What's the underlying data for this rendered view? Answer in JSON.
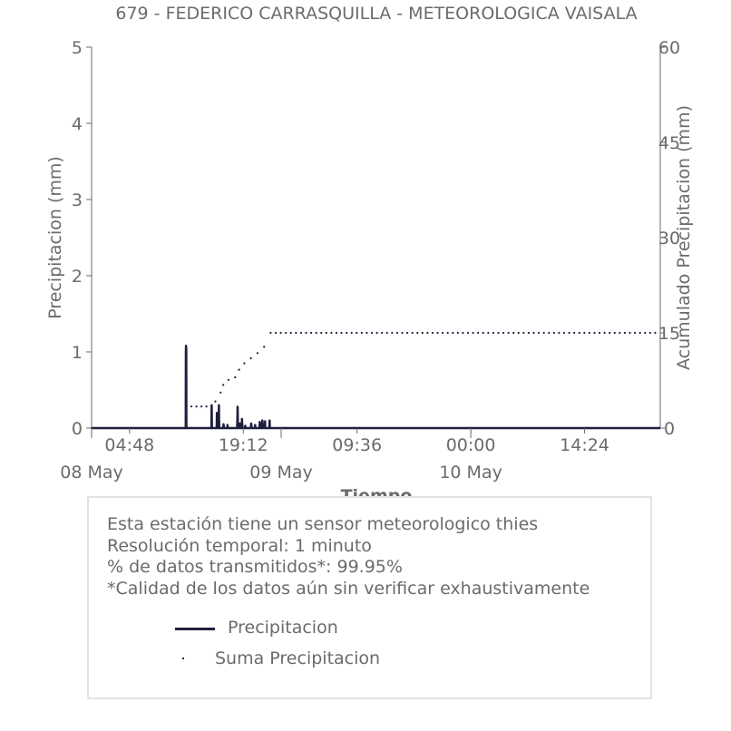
{
  "chart_data": {
    "type": "line",
    "title": "679 - FEDERICO CARRASQUILLA - METEOROLOGICA VAISALA",
    "xlabel": "Tiempo",
    "ylabel": "Precipitacion (mm)",
    "ylabel_right": "Acumulado Precipitacion (mm)",
    "x_start": "2024-05-08 00:00",
    "x_end": "2024-05-10 23:59",
    "ylim": [
      0,
      5
    ],
    "ylim_right": [
      0,
      60
    ],
    "yticks": [
      "0",
      "1",
      "2",
      "3",
      "4",
      "5"
    ],
    "yticks_right": [
      "0",
      "15",
      "30",
      "45",
      "60"
    ],
    "xticks": [
      {
        "t": "2024-05-08 04:48",
        "label": "04:48"
      },
      {
        "t": "2024-05-08 19:12",
        "label": "19:12"
      },
      {
        "t": "2024-05-09 09:36",
        "label": "09:36"
      },
      {
        "t": "2024-05-10 00:00",
        "label": "00:00"
      },
      {
        "t": "2024-05-10 14:24",
        "label": "14:24"
      }
    ],
    "date_ticks": [
      {
        "t": "2024-05-08 00:00",
        "label": "08 May"
      },
      {
        "t": "2024-05-09 00:00",
        "label": "09 May"
      },
      {
        "t": "2024-05-10 00:00",
        "label": "10 May"
      }
    ],
    "series": [
      {
        "name": "Precipitacion",
        "style": "line",
        "color": "#1f1f3d",
        "points": [
          [
            "2024-05-08 00:00",
            0
          ],
          [
            "2024-05-08 11:55",
            0
          ],
          [
            "2024-05-08 11:56",
            0.95
          ],
          [
            "2024-05-08 11:57",
            1.08
          ],
          [
            "2024-05-08 11:58",
            0.5
          ],
          [
            "2024-05-08 11:59",
            1.05
          ],
          [
            "2024-05-08 12:00",
            0
          ],
          [
            "2024-05-08 15:10",
            0
          ],
          [
            "2024-05-08 15:12",
            0.3
          ],
          [
            "2024-05-08 15:14",
            0
          ],
          [
            "2024-05-08 15:50",
            0
          ],
          [
            "2024-05-08 15:52",
            0.2
          ],
          [
            "2024-05-08 15:54",
            0
          ],
          [
            "2024-05-08 16:05",
            0
          ],
          [
            "2024-05-08 16:07",
            0.3
          ],
          [
            "2024-05-08 16:08",
            0.1
          ],
          [
            "2024-05-08 16:10",
            0
          ],
          [
            "2024-05-08 16:40",
            0
          ],
          [
            "2024-05-08 16:42",
            0.05
          ],
          [
            "2024-05-08 16:45",
            0
          ],
          [
            "2024-05-08 17:10",
            0
          ],
          [
            "2024-05-08 17:12",
            0.04
          ],
          [
            "2024-05-08 17:15",
            0
          ],
          [
            "2024-05-08 18:25",
            0
          ],
          [
            "2024-05-08 18:27",
            0.08
          ],
          [
            "2024-05-08 18:29",
            0.28
          ],
          [
            "2024-05-08 18:31",
            0.07
          ],
          [
            "2024-05-08 18:33",
            0
          ],
          [
            "2024-05-08 18:45",
            0
          ],
          [
            "2024-05-08 18:47",
            0.06
          ],
          [
            "2024-05-08 18:49",
            0
          ],
          [
            "2024-05-08 19:00",
            0
          ],
          [
            "2024-05-08 19:02",
            0.12
          ],
          [
            "2024-05-08 19:04",
            0.05
          ],
          [
            "2024-05-08 19:06",
            0
          ],
          [
            "2024-05-08 19:25",
            0
          ],
          [
            "2024-05-08 19:27",
            0.03
          ],
          [
            "2024-05-08 19:30",
            0
          ],
          [
            "2024-05-08 20:10",
            0
          ],
          [
            "2024-05-08 20:12",
            0.06
          ],
          [
            "2024-05-08 20:14",
            0.03
          ],
          [
            "2024-05-08 20:16",
            0
          ],
          [
            "2024-05-08 20:40",
            0
          ],
          [
            "2024-05-08 20:42",
            0.04
          ],
          [
            "2024-05-08 20:44",
            0
          ],
          [
            "2024-05-08 21:15",
            0
          ],
          [
            "2024-05-08 21:17",
            0.08
          ],
          [
            "2024-05-08 21:19",
            0.06
          ],
          [
            "2024-05-08 21:21",
            0
          ],
          [
            "2024-05-08 21:35",
            0
          ],
          [
            "2024-05-08 21:37",
            0.1
          ],
          [
            "2024-05-08 21:39",
            0.05
          ],
          [
            "2024-05-08 21:41",
            0
          ],
          [
            "2024-05-08 21:55",
            0
          ],
          [
            "2024-05-08 21:57",
            0.09
          ],
          [
            "2024-05-08 21:59",
            0
          ],
          [
            "2024-05-08 22:30",
            0
          ],
          [
            "2024-05-08 22:32",
            0.1
          ],
          [
            "2024-05-08 22:34",
            0
          ],
          [
            "2024-05-10 23:59",
            0
          ]
        ]
      },
      {
        "name": "Suma Precipicacion",
        "style": "dots",
        "color": "#1f1f3d",
        "points": [
          [
            "2024-05-08 00:00",
            0
          ],
          [
            "2024-05-08 11:55",
            0
          ],
          [
            "2024-05-08 12:00",
            3.4
          ],
          [
            "2024-05-08 15:10",
            3.4
          ],
          [
            "2024-05-08 15:40",
            4.2
          ],
          [
            "2024-05-08 16:20",
            5.6
          ],
          [
            "2024-05-08 16:40",
            6.8
          ],
          [
            "2024-05-08 17:20",
            7.6
          ],
          [
            "2024-05-08 18:10",
            8.0
          ],
          [
            "2024-05-08 18:40",
            9.2
          ],
          [
            "2024-05-08 19:20",
            10.2
          ],
          [
            "2024-05-08 20:10",
            11.0
          ],
          [
            "2024-05-08 21:00",
            11.8
          ],
          [
            "2024-05-08 21:50",
            12.8
          ],
          [
            "2024-05-08 22:40",
            15.0
          ],
          [
            "2024-05-10 23:59",
            15.0
          ]
        ]
      }
    ],
    "grid": false,
    "legend_placement": "bottom"
  },
  "info": {
    "line1": "Esta estación tiene un sensor meteorologico thies",
    "line2": "Resolución temporal: 1 minuto",
    "line3": "% de datos transmitidos*: 99.95%",
    "line4": "*Calidad de los datos aún sin verificar exhaustivamente"
  },
  "legend": {
    "line_label": "Precipitacion",
    "dots_label": "Suma Precipitacion"
  }
}
